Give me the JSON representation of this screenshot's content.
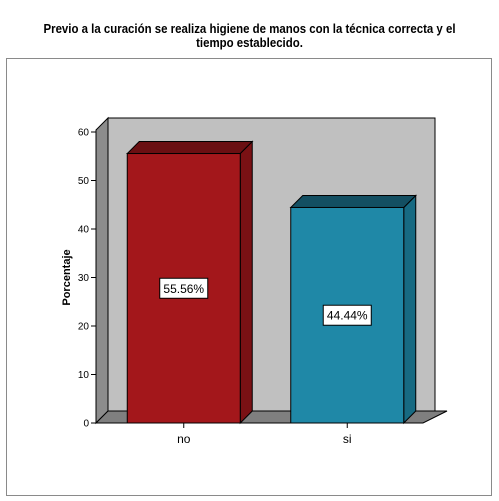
{
  "chart_data": {
    "type": "bar",
    "title_lines": [
      "Previo a la curación se realiza higiene de manos con la técnica correcta y el",
      "tiempo establecido."
    ],
    "ylabel": "Porcentaje",
    "xlabel": "",
    "categories": [
      "no",
      "si"
    ],
    "values": [
      55.56,
      44.44
    ],
    "data_labels": [
      "55.56%",
      "44.44%"
    ],
    "ylim": [
      0,
      60
    ],
    "yticks": [
      0,
      10,
      20,
      30,
      40,
      50,
      60
    ],
    "bar_colors": [
      "#a3171b",
      "#1f88a7"
    ],
    "bar_top_colors": [
      "#6a0f12",
      "#134f62"
    ],
    "bar_side_colors": [
      "#7a1114",
      "#176a82"
    ],
    "plot_background": "#c0c0c0",
    "wall_side_color": "#8c8c8c",
    "floor_color": "#7f7f7f",
    "grid": false,
    "legend": "none"
  }
}
